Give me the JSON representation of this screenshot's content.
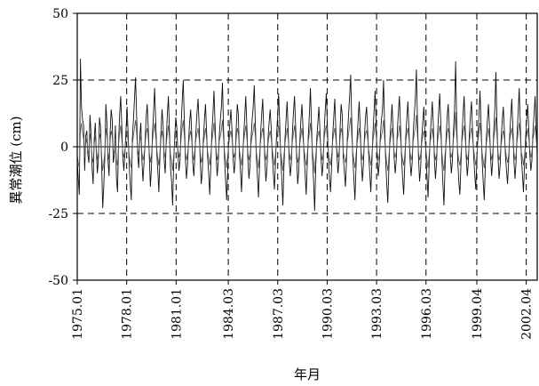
{
  "chart_data": {
    "type": "line",
    "title": "",
    "xlabel": "年月",
    "ylabel": "異常潮位 (cm)",
    "ylim": [
      -50,
      50
    ],
    "yticks": [
      50,
      25,
      0,
      -25,
      -50
    ],
    "ytick_labels": [
      "50",
      "25",
      "0",
      "-25",
      "-50"
    ],
    "x_start": "1975.01",
    "x_end": "2002.12",
    "xtick_labels": [
      "1975.01",
      "1978.01",
      "1981.01",
      "1984.03",
      "1987.03",
      "1990.03",
      "1993.03",
      "1996.03",
      "1999.04",
      "2002.04"
    ],
    "grid": true,
    "series": [
      {
        "values": [
          -5,
          -12,
          -18,
          33,
          15,
          10,
          8,
          -9,
          4,
          6,
          -3,
          -6,
          12,
          5,
          -8,
          -14,
          3,
          9,
          -2,
          -10,
          -4,
          11,
          7,
          -6,
          -23,
          -15,
          -4,
          16,
          9,
          -5,
          -11,
          5,
          14,
          10,
          -6,
          -3,
          8,
          -12,
          -17,
          2,
          12,
          19,
          8,
          -4,
          -9,
          -2,
          6,
          15,
          5,
          -7,
          -14,
          -20,
          3,
          10,
          18,
          26,
          12,
          -3,
          -8,
          4,
          9,
          -5,
          -13,
          -6,
          2,
          11,
          16,
          7,
          -4,
          -15,
          -8,
          5,
          13,
          22,
          10,
          -2,
          -9,
          -17,
          -4,
          6,
          14,
          8,
          -5,
          -10,
          3,
          12,
          19,
          6,
          -8,
          -13,
          -22,
          -6,
          4,
          11,
          7,
          -3,
          -9,
          -5,
          8,
          17,
          25,
          10,
          -4,
          -12,
          -7,
          2,
          9,
          14,
          5,
          -6,
          -11,
          -3,
          6,
          13,
          18,
          8,
          -5,
          -14,
          -9,
          3,
          10,
          16,
          6,
          -4,
          -10,
          -18,
          -7,
          5,
          12,
          21,
          9,
          -3,
          -11,
          -6,
          4,
          10,
          15,
          24,
          7,
          -5,
          -13,
          -20,
          -8,
          3,
          9,
          14,
          6,
          -4,
          -10,
          -5,
          7,
          16,
          12,
          -3,
          -9,
          -17,
          -6,
          4,
          11,
          19,
          8,
          -5,
          -12,
          -7,
          3,
          10,
          15,
          23,
          9,
          -4,
          -11,
          -19,
          -7,
          5,
          12,
          18,
          6,
          -5,
          -13,
          -8,
          3,
          9,
          14,
          7,
          -3,
          -10,
          -16,
          -6,
          4,
          11,
          20,
          9,
          -4,
          -12,
          -22,
          -8,
          3,
          10,
          17,
          6,
          -5,
          -11,
          -6,
          5,
          13,
          19,
          8,
          -4,
          -14,
          -9,
          2,
          10,
          16,
          7,
          -3,
          -10,
          -18,
          -7,
          4,
          12,
          22,
          9,
          -5,
          -13,
          -24,
          -8,
          3,
          9,
          15,
          6,
          -4,
          -11,
          -6,
          6,
          14,
          20,
          8,
          -5,
          -12,
          -17,
          -7,
          4,
          11,
          18,
          6,
          -3,
          -10,
          -5,
          7,
          16,
          12,
          -4,
          -9,
          -15,
          -6,
          5,
          12,
          19,
          27,
          9,
          -4,
          -12,
          -20,
          -8,
          3,
          10,
          17,
          7,
          -5,
          -13,
          -7,
          4,
          11,
          15,
          6,
          -3,
          -10,
          -17,
          -6,
          5,
          13,
          21,
          9,
          -4,
          -11,
          -6,
          4,
          10,
          14,
          25,
          8,
          -5,
          -14,
          -21,
          -9,
          3,
          9,
          16,
          7,
          -4,
          -10,
          -5,
          6,
          13,
          19,
          8,
          -4,
          -12,
          -18,
          -7,
          4,
          11,
          17,
          6,
          -5,
          -11,
          -6,
          5,
          12,
          18,
          29,
          10,
          -4,
          -13,
          -8,
          3,
          9,
          15,
          6,
          -3,
          -11,
          -19,
          -7,
          4,
          10,
          17,
          8,
          -5,
          -12,
          -6,
          5,
          13,
          20,
          9,
          -4,
          -14,
          -22,
          -8,
          3,
          11,
          16,
          7,
          -4,
          -10,
          -5,
          6,
          14,
          32,
          10,
          -5,
          -13,
          -18,
          -7,
          4,
          12,
          19,
          8,
          -4,
          -11,
          -6,
          5,
          12,
          17,
          6,
          -3,
          -10,
          -16,
          -6,
          4,
          11,
          21,
          9,
          -5,
          -13,
          -20,
          -8,
          3,
          10,
          16,
          7,
          -4,
          -11,
          -5,
          6,
          14,
          28,
          9,
          -4,
          -12,
          -7,
          3,
          10,
          15,
          6,
          -3,
          -9,
          -14,
          -6,
          4,
          11,
          18,
          8,
          -5,
          -12,
          -6,
          5,
          13,
          22,
          9,
          -4,
          -10,
          -17,
          -7,
          3,
          10,
          16,
          7,
          -3,
          -9,
          -5,
          6,
          12,
          19,
          8,
          -4
        ]
      },
      {
        "values": [
          -3,
          -6,
          -8,
          6,
          9,
          5,
          3,
          -4,
          1,
          3,
          -1,
          -3,
          5,
          2,
          -4,
          -6,
          1,
          4,
          -1,
          -5,
          -2,
          5,
          3,
          -3,
          -9,
          -6,
          -2,
          7,
          4,
          -2,
          -5,
          2,
          6,
          4,
          -3,
          -1,
          3,
          -5,
          -7,
          1,
          5,
          8,
          3,
          -2,
          -4,
          -1,
          3,
          6,
          2,
          -3,
          -6,
          -8,
          1,
          4,
          7,
          10,
          5,
          -1,
          -3,
          2,
          4,
          -2,
          -5,
          -3,
          1,
          5,
          7,
          3,
          -2,
          -6,
          -3,
          2,
          6,
          9,
          4,
          -1,
          -4,
          -7,
          -2,
          3,
          6,
          3,
          -2,
          -4,
          1,
          5,
          8,
          3,
          -3,
          -5,
          -9,
          -3,
          2,
          5,
          3,
          -1,
          -4,
          -2,
          3,
          7,
          10,
          4,
          -2,
          -5,
          -3,
          1,
          4,
          6,
          2,
          -3,
          -5,
          -1,
          3,
          5,
          7,
          3,
          -2,
          -6,
          -4,
          1,
          4,
          7,
          3,
          -2,
          -4,
          -7,
          -3,
          2,
          5,
          9,
          4,
          -1,
          -5,
          -3,
          2,
          4,
          6,
          10,
          3,
          -2,
          -5,
          -8,
          -3,
          1,
          4,
          6,
          3,
          -2,
          -4,
          -2,
          3,
          7,
          5,
          -1,
          -4,
          -7,
          -3,
          2,
          5,
          8,
          3,
          -2,
          -5,
          -3,
          1,
          4,
          6,
          9,
          4,
          -2,
          -5,
          -8,
          -3,
          2,
          5,
          7,
          3,
          -2,
          -5,
          -3,
          1,
          4,
          6,
          3,
          -1,
          -4,
          -7,
          -3,
          2,
          5,
          8,
          4,
          -2,
          -5,
          -9,
          -3,
          1,
          4,
          7,
          3,
          -2,
          -5,
          -3,
          2,
          5,
          8,
          3,
          -2,
          -6,
          -4,
          1,
          4,
          7,
          3,
          -1,
          -4,
          -7,
          -3,
          2,
          5,
          9,
          4,
          -2,
          -5,
          -10,
          -3,
          1,
          4,
          6,
          3,
          -2,
          -5,
          -3,
          3,
          6,
          8,
          3,
          -2,
          -5,
          -7,
          -3,
          2,
          5,
          7,
          3,
          -1,
          -4,
          -2,
          3,
          7,
          5,
          -2,
          -4,
          -6,
          -3,
          2,
          5,
          8,
          11,
          4,
          -2,
          -5,
          -8,
          -3,
          1,
          4,
          7,
          3,
          -2,
          -5,
          -3,
          2,
          5,
          6,
          3,
          -1,
          -4,
          -7,
          -3,
          2,
          5,
          9,
          4,
          -2,
          -5,
          -3,
          2,
          4,
          6,
          10,
          3,
          -2,
          -6,
          -9,
          -4,
          1,
          4,
          7,
          3,
          -2,
          -4,
          -2,
          3,
          5,
          8,
          3,
          -2,
          -5,
          -7,
          -3,
          2,
          5,
          7,
          3,
          -2,
          -5,
          -3,
          2,
          5,
          7,
          12,
          4,
          -2,
          -5,
          -3,
          1,
          4,
          6,
          3,
          -1,
          -5,
          -8,
          -3,
          2,
          4,
          7,
          3,
          -2,
          -5,
          -3,
          2,
          5,
          8,
          4,
          -2,
          -6,
          -9,
          -3,
          1,
          5,
          7,
          3,
          -2,
          -4,
          -2,
          3,
          6,
          13,
          4,
          -2,
          -5,
          -7,
          -3,
          2,
          5,
          8,
          3,
          -2,
          -5,
          -3,
          2,
          5,
          7,
          3,
          -1,
          -4,
          -7,
          -3,
          2,
          5,
          9,
          4,
          -2,
          -5,
          -8,
          -3,
          1,
          4,
          7,
          3,
          -2,
          -5,
          -2,
          3,
          6,
          11,
          4,
          -2,
          -5,
          -3,
          1,
          4,
          6,
          3,
          -1,
          -4,
          -6,
          -3,
          2,
          5,
          7,
          3,
          -2,
          -5,
          -3,
          2,
          5,
          9,
          4,
          -2,
          -4,
          -7,
          -3,
          1,
          4,
          7,
          3,
          -1,
          -4,
          -2,
          3,
          5,
          8,
          3,
          -2
        ]
      }
    ]
  }
}
